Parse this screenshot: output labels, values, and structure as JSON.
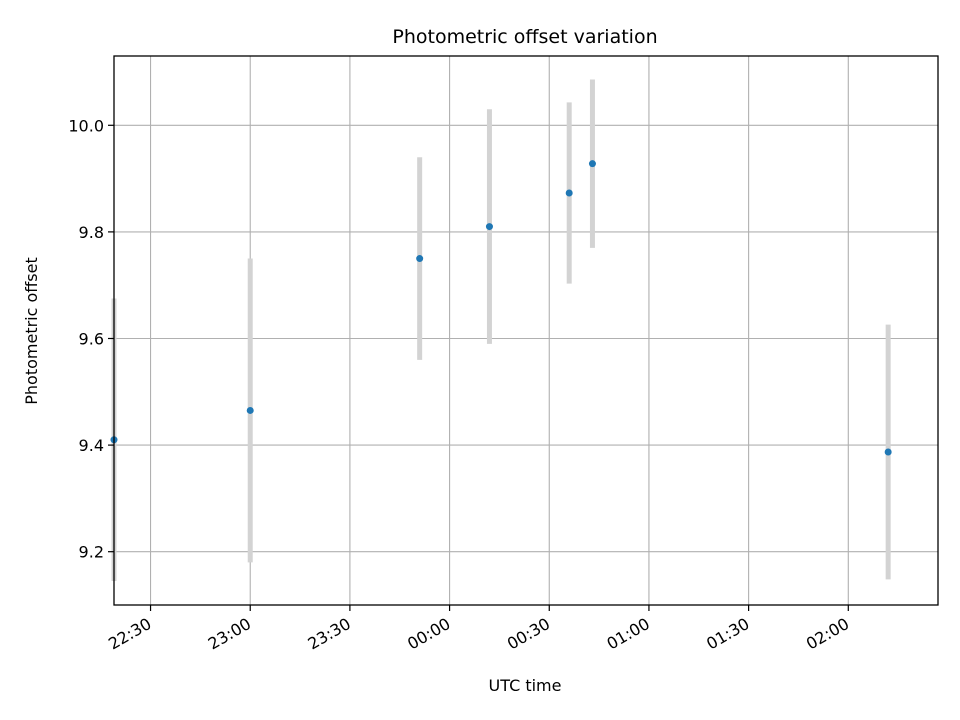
{
  "chart_data": {
    "type": "scatter",
    "title": "Photometric offset variation",
    "xlabel": "UTC time",
    "ylabel": "Photometric offset",
    "grid": true,
    "x_ticks": [
      "22:30",
      "23:00",
      "23:30",
      "00:00",
      "00:30",
      "01:00",
      "01:30",
      "02:00"
    ],
    "y_ticks": [
      "9.2",
      "9.4",
      "9.6",
      "9.8",
      "10.0"
    ],
    "xlim": [
      "22:19",
      "02:27"
    ],
    "ylim": [
      9.1,
      10.13
    ],
    "series": [
      {
        "color": "#1f77b4",
        "errorbar_color": "#d3d3d3",
        "points": [
          {
            "x": "22:19",
            "y": 9.41,
            "err_low": 9.145,
            "err_high": 9.675
          },
          {
            "x": "23:00",
            "y": 9.465,
            "err_low": 9.18,
            "err_high": 9.75
          },
          {
            "x": "23:51",
            "y": 9.75,
            "err_low": 9.56,
            "err_high": 9.94
          },
          {
            "x": "00:12",
            "y": 9.81,
            "err_low": 9.59,
            "err_high": 10.03
          },
          {
            "x": "00:36",
            "y": 9.873,
            "err_low": 9.703,
            "err_high": 10.043
          },
          {
            "x": "00:43",
            "y": 9.928,
            "err_low": 9.77,
            "err_high": 10.086
          },
          {
            "x": "02:12",
            "y": 9.387,
            "err_low": 9.148,
            "err_high": 9.626
          }
        ]
      }
    ]
  }
}
